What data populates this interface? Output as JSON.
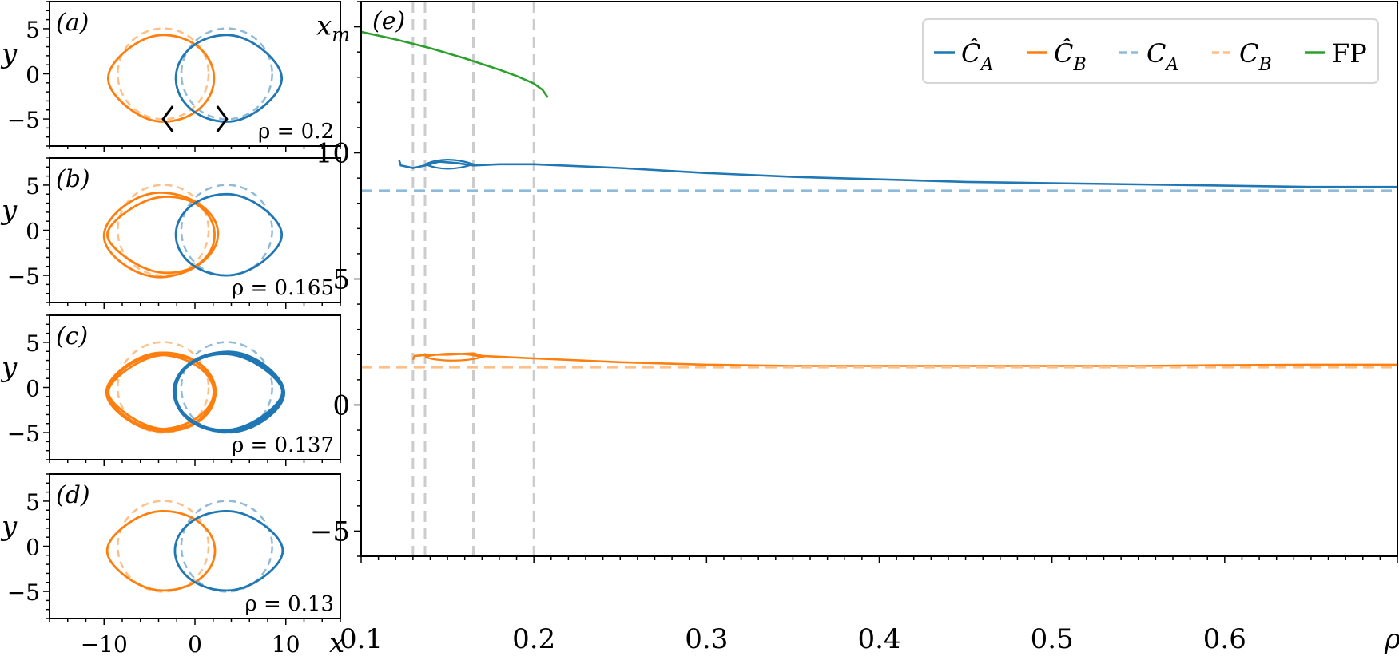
{
  "chart_data": [
    {
      "id": "a",
      "type": "line",
      "panel_label": "(a)",
      "annotation": "ρ = 0.2",
      "rho": 0.2,
      "xlabel": "",
      "ylabel": "y",
      "xlim": [
        -16,
        16
      ],
      "ylim": [
        -8,
        8
      ],
      "xticks": [
        -10,
        0,
        10
      ],
      "yticks": [
        -5,
        0,
        5
      ],
      "markers": [
        {
          "glyph": "<",
          "x": -3.5,
          "y": -5
        },
        {
          "glyph": ">",
          "x": 3.5,
          "y": -5
        }
      ],
      "curves": {
        "hatA": {
          "cx": 3.5,
          "cy": -0.5,
          "rx": 5.6,
          "ry": 4.8,
          "loops": 1
        },
        "hatB": {
          "cx": -3.5,
          "cy": -0.5,
          "rx": 5.6,
          "ry": 4.8,
          "loops": 1
        }
      }
    },
    {
      "id": "b",
      "type": "line",
      "panel_label": "(b)",
      "annotation": "ρ = 0.165",
      "rho": 0.165,
      "xlabel": "",
      "ylabel": "y",
      "xlim": [
        -16,
        16
      ],
      "ylim": [
        -8,
        8
      ],
      "xticks": [
        -10,
        0,
        10
      ],
      "yticks": [
        -5,
        0,
        5
      ],
      "curves": {
        "hatA": {
          "cx": 3.5,
          "cy": -0.5,
          "rx": 5.6,
          "ry": 4.5,
          "loops": 1
        },
        "hatB": {
          "cx": -3.5,
          "cy": -0.5,
          "rx": 5.9,
          "ry": 4.5,
          "loops": 2
        }
      }
    },
    {
      "id": "c",
      "type": "line",
      "panel_label": "(c)",
      "annotation": "ρ = 0.137",
      "rho": 0.137,
      "xlabel": "",
      "ylabel": "y",
      "xlim": [
        -16,
        16
      ],
      "ylim": [
        -8,
        8
      ],
      "xticks": [
        -10,
        0,
        10
      ],
      "yticks": [
        -5,
        0,
        5
      ],
      "curves": {
        "hatA": {
          "cx": 3.5,
          "cy": -0.5,
          "rx": 5.8,
          "ry": 4.4,
          "loops": 6
        },
        "hatB": {
          "cx": -3.5,
          "cy": -0.5,
          "rx": 5.8,
          "ry": 4.4,
          "loops": 4
        }
      }
    },
    {
      "id": "d",
      "type": "line",
      "panel_label": "(d)",
      "annotation": "ρ = 0.13",
      "rho": 0.13,
      "xlabel": "x",
      "ylabel": "y",
      "xlim": [
        -16,
        16
      ],
      "ylim": [
        -8,
        8
      ],
      "xticks": [
        -10,
        0,
        10
      ],
      "yticks": [
        -5,
        0,
        5
      ],
      "xticklabels": [
        "−10",
        "0",
        "10"
      ],
      "curves": {
        "hatA": {
          "cx": 3.5,
          "cy": -0.5,
          "rx": 5.7,
          "ry": 4.4,
          "loops": 1
        },
        "hatB": {
          "cx": -3.5,
          "cy": -0.5,
          "rx": 5.7,
          "ry": 4.4,
          "loops": 1
        }
      }
    },
    {
      "id": "e",
      "type": "line",
      "panel_label": "(e)",
      "title": "",
      "xlabel": "ρ",
      "ylabel": "x_m",
      "xlim": [
        0.1,
        0.7
      ],
      "ylim": [
        -6,
        16
      ],
      "xticks": [
        0.1,
        0.2,
        0.3,
        0.4,
        0.5,
        0.6
      ],
      "xticklabels": [
        "0.1",
        "0.2",
        "0.3",
        "0.4",
        "0.5",
        "0.6"
      ],
      "yticks": [
        -5,
        0,
        5,
        10
      ],
      "yticklabels": [
        "−5",
        "0",
        "5",
        "10"
      ],
      "grid": false,
      "legend_position": "upper right",
      "vlines": [
        0.13,
        0.137,
        0.165,
        0.2
      ],
      "series": [
        {
          "name": "Ĉ_A",
          "color": "#1f77b4",
          "style": "solid",
          "x": [
            0.122,
            0.123,
            0.13,
            0.137,
            0.145,
            0.155,
            0.165,
            0.18,
            0.2,
            0.25,
            0.3,
            0.35,
            0.4,
            0.45,
            0.5,
            0.55,
            0.6,
            0.65,
            0.7
          ],
          "y": [
            9.7,
            9.5,
            9.4,
            9.5,
            9.65,
            9.6,
            9.5,
            9.55,
            9.55,
            9.4,
            9.2,
            9.05,
            8.95,
            8.85,
            8.8,
            8.75,
            8.7,
            8.65,
            8.65
          ]
        },
        {
          "name": "Ĉ_B",
          "color": "#ff7f0e",
          "style": "solid",
          "x": [
            0.13,
            0.131,
            0.14,
            0.15,
            0.165,
            0.17,
            0.2,
            0.25,
            0.3,
            0.35,
            0.4,
            0.45,
            0.5,
            0.55,
            0.6,
            0.65,
            0.7
          ],
          "y": [
            1.8,
            1.95,
            2.0,
            2.0,
            2.05,
            1.95,
            1.85,
            1.7,
            1.6,
            1.55,
            1.55,
            1.55,
            1.55,
            1.55,
            1.58,
            1.6,
            1.6
          ]
        },
        {
          "name": "C_A",
          "color": "#8fbbd9",
          "style": "dashed",
          "x": [
            0.1,
            0.7
          ],
          "y": [
            8.5,
            8.5
          ]
        },
        {
          "name": "C_B",
          "color": "#ffbf87",
          "style": "dashed",
          "x": [
            0.1,
            0.7
          ],
          "y": [
            1.5,
            1.5
          ]
        },
        {
          "name": "FP",
          "color": "#2ca02c",
          "style": "solid",
          "x": [
            0.1,
            0.12,
            0.14,
            0.16,
            0.18,
            0.19,
            0.2,
            0.205,
            0.208
          ],
          "y": [
            14.8,
            14.5,
            14.15,
            13.75,
            13.3,
            13.05,
            12.75,
            12.5,
            12.2
          ]
        }
      ],
      "loops": [
        {
          "series": "Ĉ_A",
          "x0": 0.137,
          "x1": 0.165,
          "ytop": 9.75,
          "ybot": 9.35
        },
        {
          "series": "Ĉ_B",
          "x0": 0.137,
          "x1": 0.17,
          "ytop": 2.05,
          "ybot": 1.75
        }
      ]
    }
  ],
  "legend": {
    "items": [
      {
        "label": "Ĉ",
        "sub": "A",
        "color": "#1f77b4",
        "style": "solid"
      },
      {
        "label": "Ĉ",
        "sub": "B",
        "color": "#ff7f0e",
        "style": "solid"
      },
      {
        "label": "C",
        "sub": "A",
        "color": "#8fbbd9",
        "style": "dashed"
      },
      {
        "label": "C",
        "sub": "B",
        "color": "#ffbf87",
        "style": "dashed"
      },
      {
        "label": "FP",
        "sub": "",
        "color": "#2ca02c",
        "style": "solid"
      }
    ]
  },
  "colors": {
    "blue": "#1f77b4",
    "orange": "#ff7f0e",
    "blue_light": "#8fbbd9",
    "orange_light": "#ffbf87",
    "green": "#2ca02c",
    "vline": "#cccccc"
  }
}
